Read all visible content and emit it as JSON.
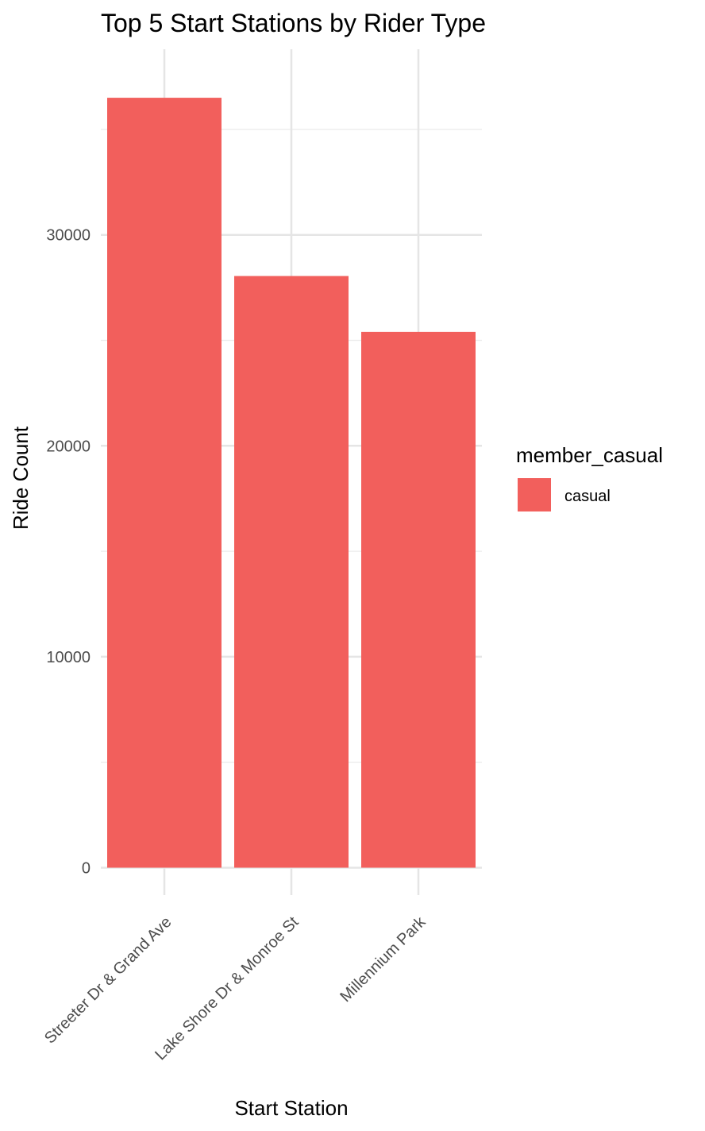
{
  "chart_data": {
    "type": "bar",
    "title": "Top 5 Start Stations by Rider Type",
    "xlabel": "Start Station",
    "ylabel": "Ride Count",
    "categories": [
      "Streeter Dr & Grand Ave",
      "Lake Shore Dr & Monroe St",
      "Millennium Park"
    ],
    "series": [
      {
        "name": "casual",
        "color": "#F25F5C",
        "values": [
          36500,
          28050,
          25400
        ]
      }
    ],
    "ylim": [
      -1300,
      38800
    ],
    "yticks": [
      0,
      10000,
      20000,
      30000
    ],
    "yminor": [
      5000,
      15000,
      25000,
      35000
    ],
    "grid": true,
    "legend": {
      "title": "member_casual",
      "position": "right"
    }
  }
}
